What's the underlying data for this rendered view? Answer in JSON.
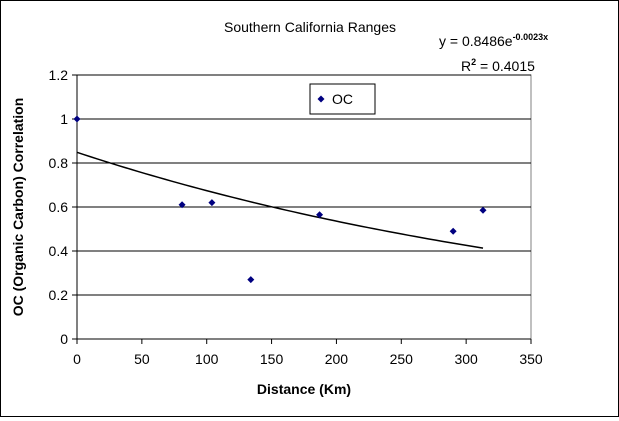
{
  "chart_data": {
    "type": "scatter",
    "title": "Southern California Ranges",
    "xlabel": "Distance (Km)",
    "ylabel": "OC (Organic Carbon) Correlation",
    "xlim": [
      0,
      350
    ],
    "ylim": [
      0,
      1.2
    ],
    "x_ticks": [
      0,
      50,
      100,
      150,
      200,
      250,
      300,
      350
    ],
    "y_ticks": [
      0,
      0.2,
      0.4,
      0.6,
      0.8,
      1,
      1.2
    ],
    "grid": "horizontal",
    "legend_position": "top-center",
    "series": [
      {
        "name": "OC",
        "marker": "diamond",
        "color": "#000080",
        "x": [
          0,
          81,
          104,
          134,
          187,
          290,
          313
        ],
        "y": [
          1.0,
          0.61,
          0.62,
          0.27,
          0.565,
          0.49,
          0.585
        ]
      }
    ],
    "trendline": {
      "type": "exponential",
      "coefficient": 0.8486,
      "exponent": -0.0023,
      "x_range": [
        0,
        313
      ],
      "equation_base": "y = 0.8486e",
      "equation_exponent": "-0.0023x",
      "r2_label": "R",
      "r2_sup": "2",
      "r2_value": " = 0.4015"
    }
  }
}
